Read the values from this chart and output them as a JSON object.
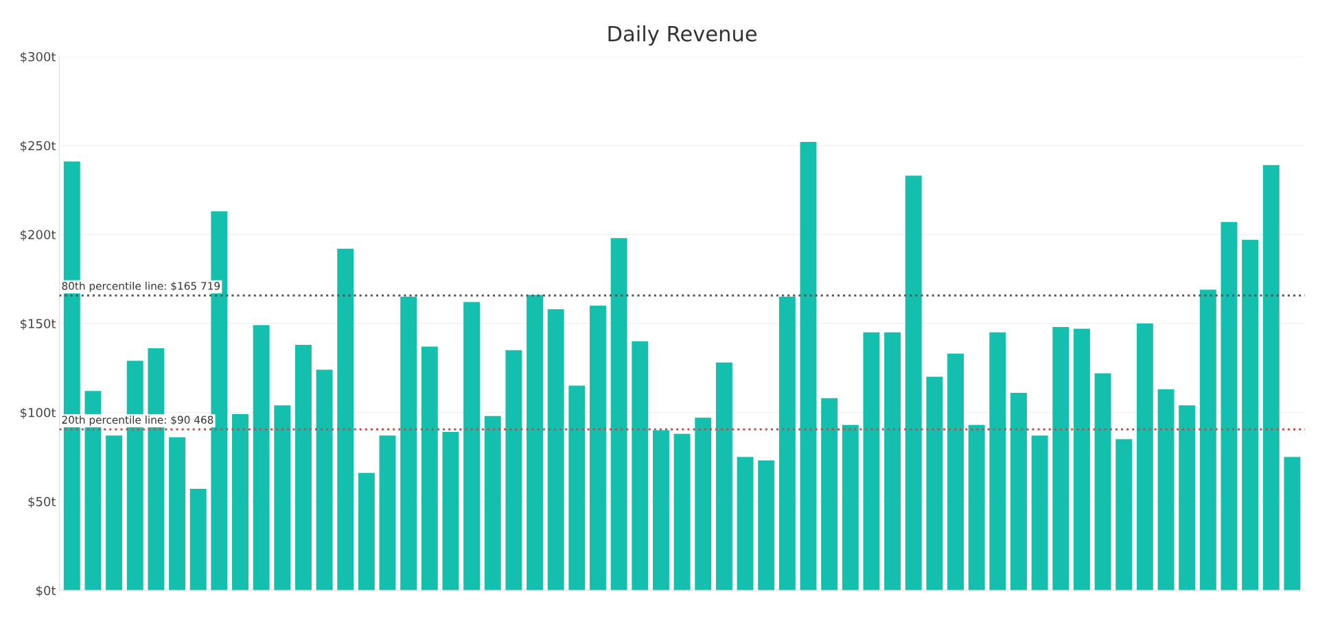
{
  "chart_data": {
    "type": "bar",
    "title": "Daily Revenue",
    "categories": [
      null,
      null,
      null,
      null,
      null,
      null,
      null,
      null,
      null,
      null,
      null,
      null,
      null,
      null,
      null,
      null,
      null,
      null,
      null,
      null,
      null,
      null,
      null,
      null,
      null,
      null,
      null,
      null,
      null,
      null,
      null,
      null,
      null,
      null,
      null,
      null,
      null,
      null,
      null,
      null,
      null,
      null,
      null,
      null,
      null,
      null,
      null,
      null,
      null,
      null,
      null,
      null,
      null,
      null,
      null,
      null,
      null,
      null,
      null
    ],
    "values": [
      241,
      112,
      87,
      129,
      136,
      86,
      57,
      213,
      99,
      149,
      104,
      138,
      124,
      192,
      66,
      87,
      165,
      137,
      89,
      162,
      98,
      135,
      166,
      158,
      115,
      160,
      198,
      140,
      90,
      88,
      97,
      128,
      75,
      73,
      165,
      252,
      108,
      93,
      145,
      145,
      233,
      120,
      133,
      93,
      145,
      111,
      87,
      148,
      147,
      122,
      85,
      150,
      113,
      104,
      169,
      207,
      197,
      239,
      75
    ],
    "color": "#14bfad",
    "ylim": [
      0,
      300
    ],
    "yticks": [
      {
        "value": 0,
        "label": "$0t"
      },
      {
        "value": 50,
        "label": "$50t"
      },
      {
        "value": 100,
        "label": "$100t"
      },
      {
        "value": 150,
        "label": "$150t"
      },
      {
        "value": 200,
        "label": "$200t"
      },
      {
        "value": 250,
        "label": "$250t"
      },
      {
        "value": 300,
        "label": "$300t"
      }
    ],
    "grid": "y",
    "ref_lines": [
      {
        "axis": "y",
        "value": 165.719,
        "label": "80th percentile line: $165 719",
        "color": "#555555",
        "line_style": "dotted"
      },
      {
        "axis": "y",
        "value": 90.468,
        "label": "20th percentile line: $90 468",
        "color": "#d9453f",
        "line_style": "dotted"
      }
    ]
  }
}
